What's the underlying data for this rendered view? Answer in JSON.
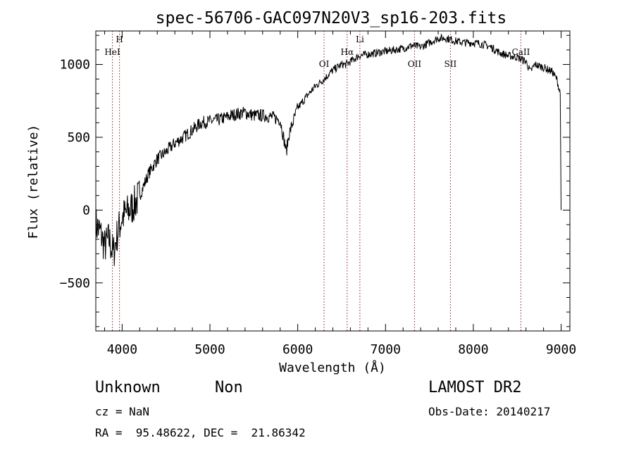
{
  "chart_data": {
    "type": "line",
    "title": "spec-56706-GAC097N20V3_sp16-203.fits",
    "xlabel": "Wavelength (Å)",
    "ylabel": "Flux (relative)",
    "xlim": [
      3700,
      9100
    ],
    "ylim": [
      -830,
      1230
    ],
    "x_ticks": [
      4000,
      5000,
      6000,
      7000,
      8000,
      9000
    ],
    "y_ticks": [
      -500,
      0,
      500,
      1000
    ],
    "grid": false,
    "line_color": "#000000",
    "marker_color": "#8b1a1a",
    "series": [
      {
        "x": [
          3700,
          3750,
          3800,
          3850,
          3900,
          3950,
          4000,
          4050,
          4100,
          4150,
          4200,
          4300,
          4400,
          4500,
          4600,
          4700,
          4800,
          4900,
          5000,
          5100,
          5200,
          5300,
          5400,
          5500,
          5600,
          5700,
          5800,
          5870,
          5900,
          6000,
          6100,
          6200,
          6300,
          6400,
          6500,
          6550,
          6600,
          6700,
          6800,
          6900,
          7000,
          7100,
          7200,
          7300,
          7400,
          7500,
          7600,
          7700,
          7800,
          7900,
          8000,
          8100,
          8200,
          8300,
          8400,
          8500,
          8600,
          8650,
          8700,
          8800,
          8900,
          8950,
          8990,
          9000
        ],
        "y": [
          -100,
          -150,
          -250,
          -200,
          -300,
          -150,
          -50,
          -20,
          10,
          50,
          100,
          250,
          350,
          400,
          460,
          500,
          550,
          600,
          610,
          620,
          640,
          660,
          670,
          650,
          650,
          640,
          620,
          400,
          520,
          700,
          780,
          850,
          900,
          960,
          1000,
          1000,
          1020,
          1060,
          1070,
          1080,
          1090,
          1100,
          1110,
          1130,
          1120,
          1150,
          1180,
          1180,
          1160,
          1150,
          1150,
          1140,
          1120,
          1080,
          1060,
          1050,
          1020,
          950,
          1000,
          980,
          950,
          900,
          800,
          0
        ]
      }
    ],
    "line_markers": [
      {
        "label": "HeI",
        "x": 3889
      },
      {
        "label": "H",
        "x": 3970
      },
      {
        "label": "OI",
        "x": 6300
      },
      {
        "label": "Hα",
        "x": 6563
      },
      {
        "label": "Li",
        "x": 6708
      },
      {
        "label": "OII",
        "x": 7330
      },
      {
        "label": "SII",
        "x": 7739
      },
      {
        "label": "CaII",
        "x": 8542
      }
    ]
  },
  "info": {
    "object_class": "Unknown",
    "subclass": "Non",
    "survey": "LAMOST DR2",
    "cz": "cz = NaN",
    "obs_date": "Obs-Date: 20140217",
    "coords": "RA =  95.48622, DEC =  21.86342"
  }
}
